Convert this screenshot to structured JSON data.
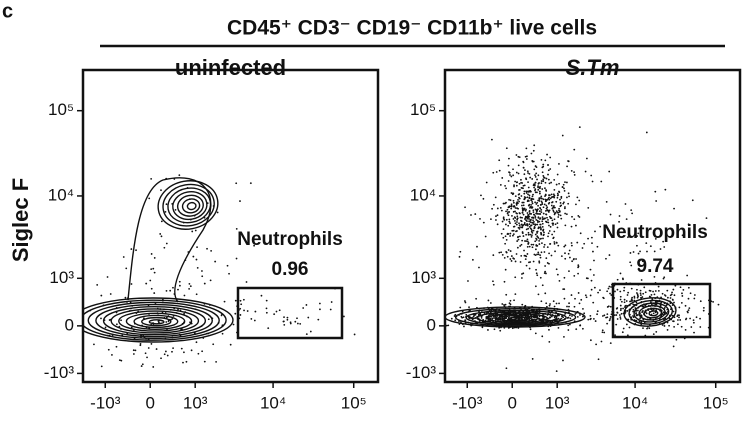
{
  "panel_label": "c",
  "header": "CD45⁺ CD3⁻ CD19⁻ CD11b⁺ live cells",
  "chart_data": [
    {
      "type": "contour",
      "title": "uninfected",
      "ylabel": "Siglec F",
      "xlim": [
        -2000,
        200000
      ],
      "ylim": [
        -1300,
        300000
      ],
      "xticks": [
        {
          "value": -1000,
          "label": "-10³"
        },
        0,
        {
          "value": 1000,
          "label": "10³"
        },
        {
          "value": 10000,
          "label": "10⁴"
        },
        {
          "value": 100000,
          "label": "10⁵"
        }
      ],
      "yticks": [
        {
          "value": -1000,
          "label": "-10³"
        },
        0,
        {
          "value": 1000,
          "label": "10³"
        },
        {
          "value": 10000,
          "label": "10⁴"
        },
        {
          "value": 100000,
          "label": "10⁵"
        }
      ],
      "gate": {
        "name": "Neutrophils",
        "value": 0.96
      }
    },
    {
      "type": "dot",
      "title": "S.Tm",
      "xlim": [
        -2000,
        200000
      ],
      "ylim": [
        -1300,
        300000
      ],
      "xticks": [
        {
          "value": -1000,
          "label": "-10³"
        },
        0,
        {
          "value": 1000,
          "label": "10³"
        },
        {
          "value": 10000,
          "label": "10⁴"
        },
        {
          "value": 100000,
          "label": "10⁵"
        }
      ],
      "yticks": [
        {
          "value": -1000,
          "label": "-10³"
        },
        0,
        {
          "value": 1000,
          "label": "10³"
        },
        {
          "value": 10000,
          "label": "10⁴"
        },
        {
          "value": 100000,
          "label": "10⁵"
        }
      ],
      "gate": {
        "name": "Neutrophils",
        "value": 9.74
      }
    }
  ]
}
